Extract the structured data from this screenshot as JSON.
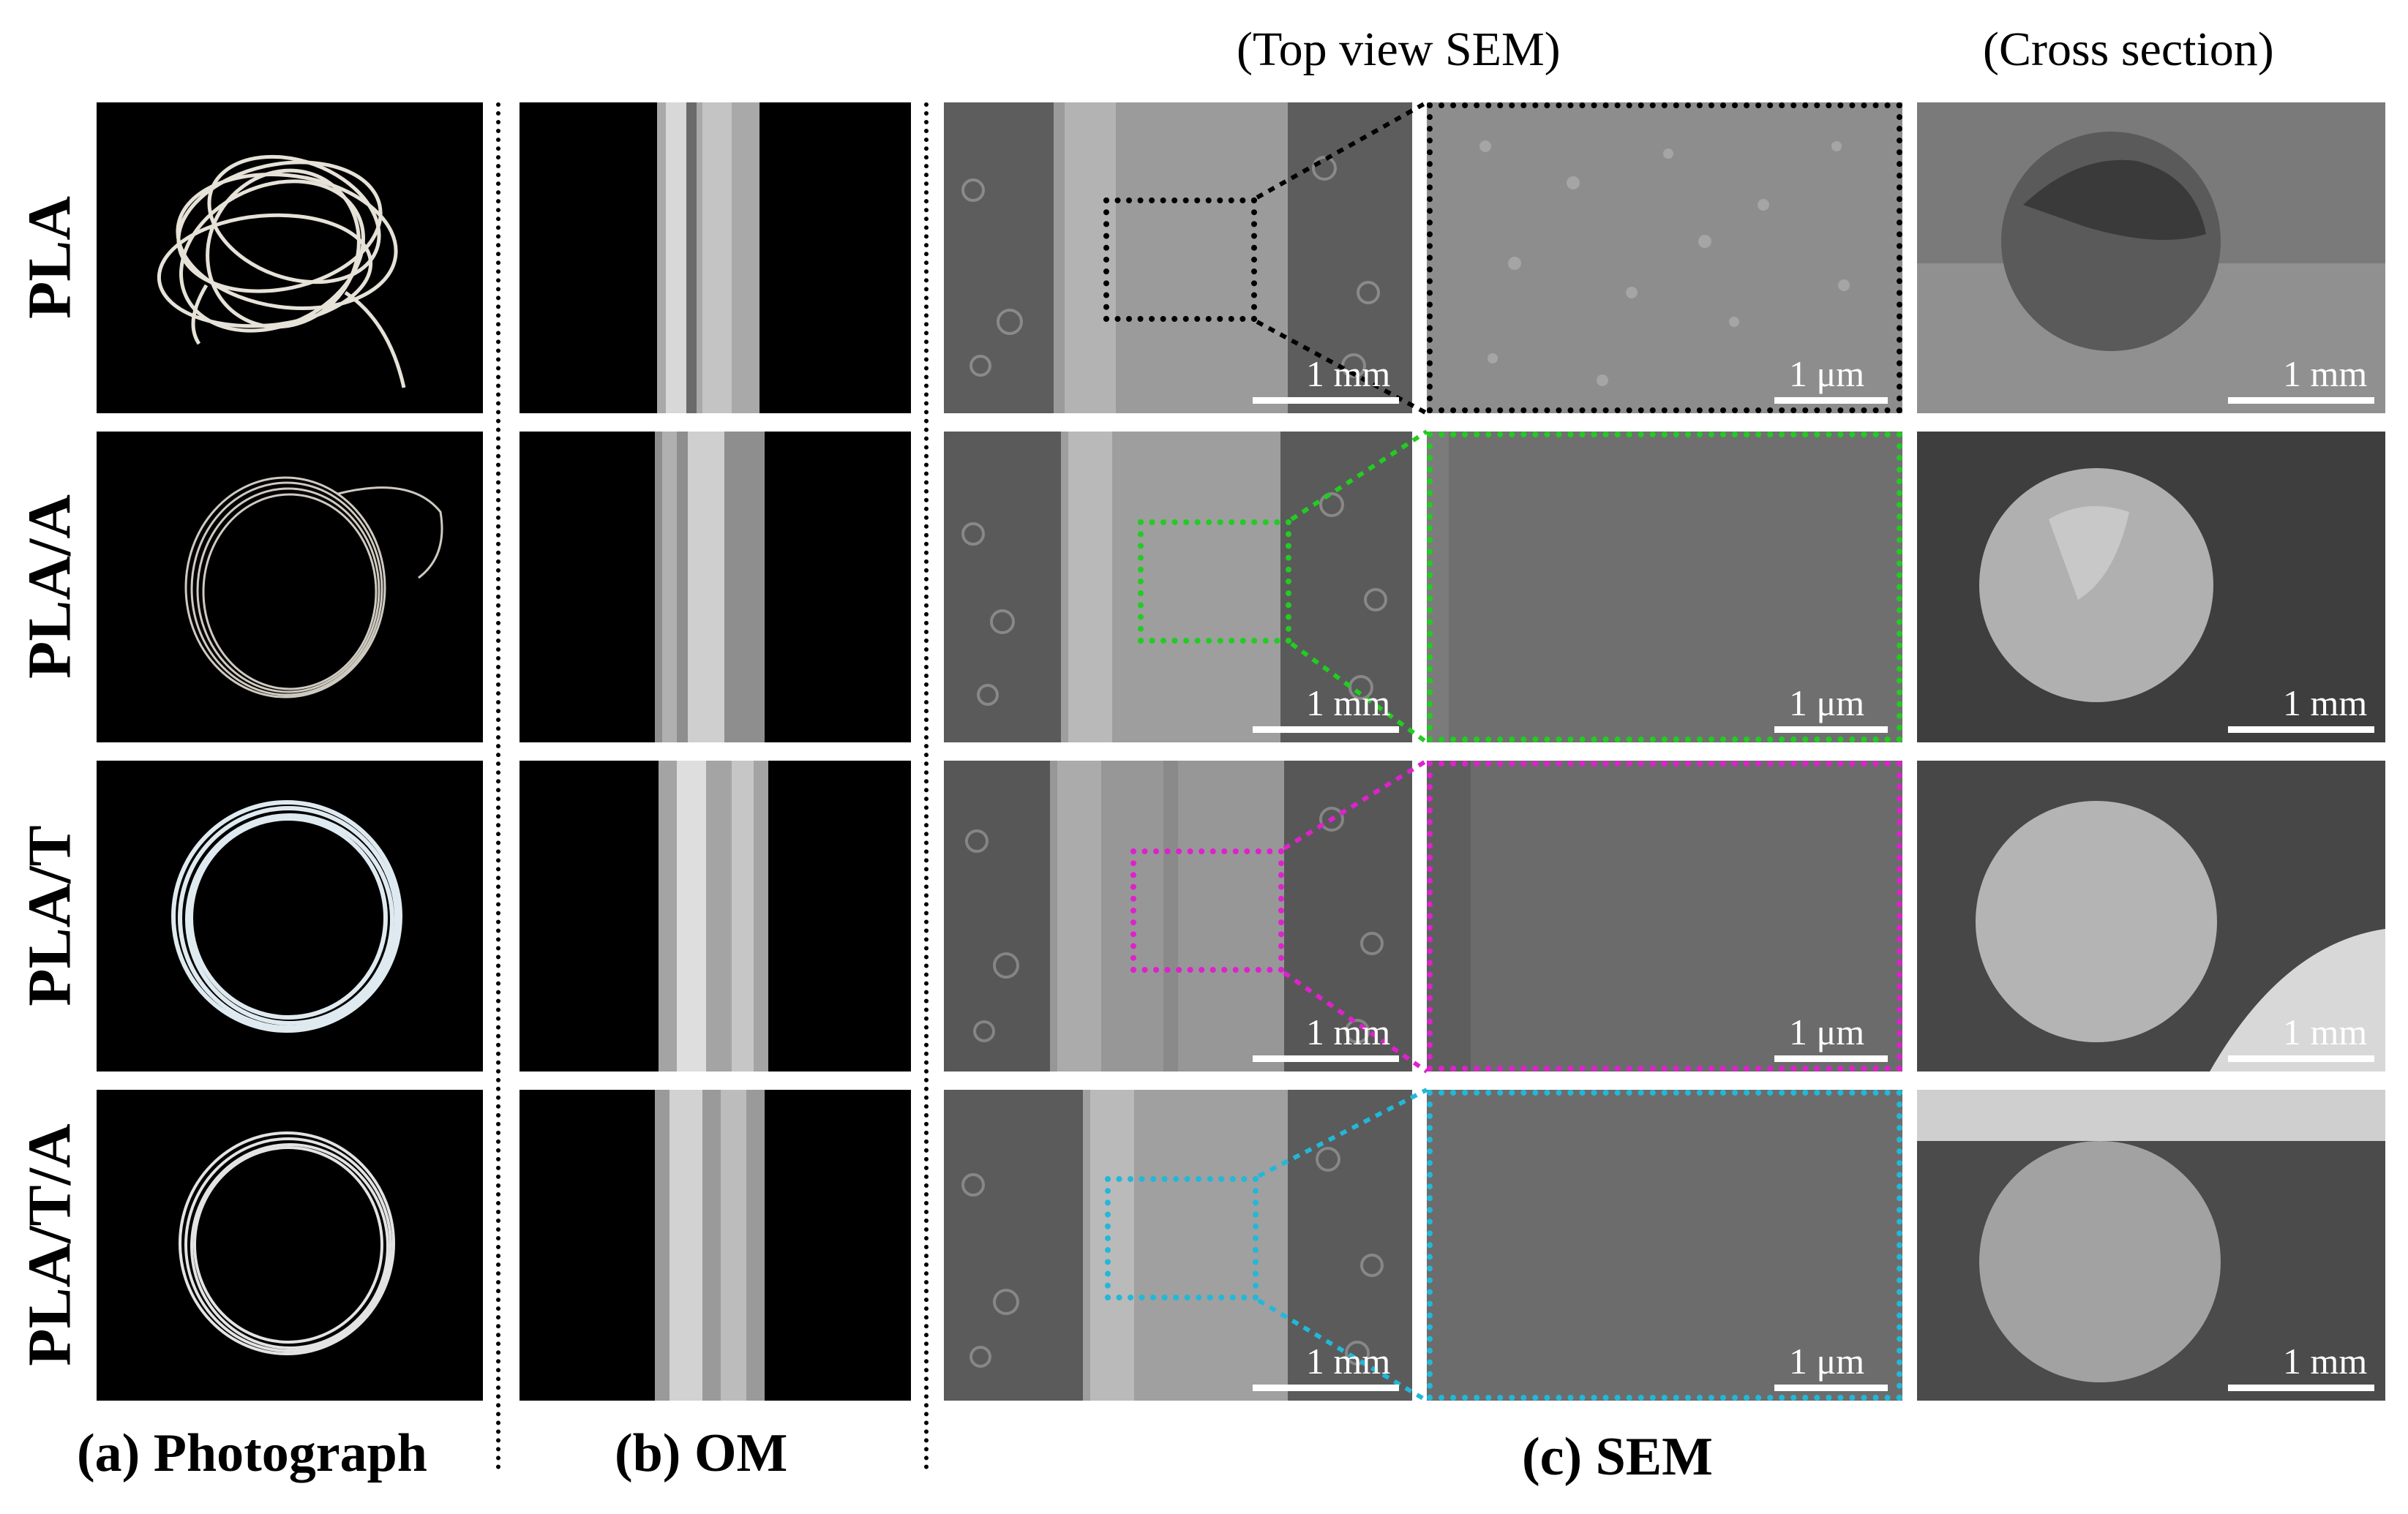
{
  "headers": {
    "top_view": "(Top view SEM)",
    "cross_section": "(Cross section)"
  },
  "captions": {
    "a": "(a) Photograph",
    "b": "(b) OM",
    "c": "(c) SEM"
  },
  "rows": [
    {
      "label": "PLA",
      "color": "#000000",
      "scale_low": "1 mm",
      "scale_high": "1 μm",
      "scale_cross": "1 mm"
    },
    {
      "label": "PLA/A",
      "color": "#22cc22",
      "scale_low": "1 mm",
      "scale_high": "1 μm",
      "scale_cross": "1 mm"
    },
    {
      "label": "PLA/T",
      "color": "#dd22cc",
      "scale_low": "1 mm",
      "scale_high": "1 μm",
      "scale_cross": "1 mm"
    },
    {
      "label": "PLA/T/A",
      "color": "#22b8d8",
      "scale_low": "1 mm",
      "scale_high": "1 μm",
      "scale_cross": "1 mm"
    }
  ]
}
